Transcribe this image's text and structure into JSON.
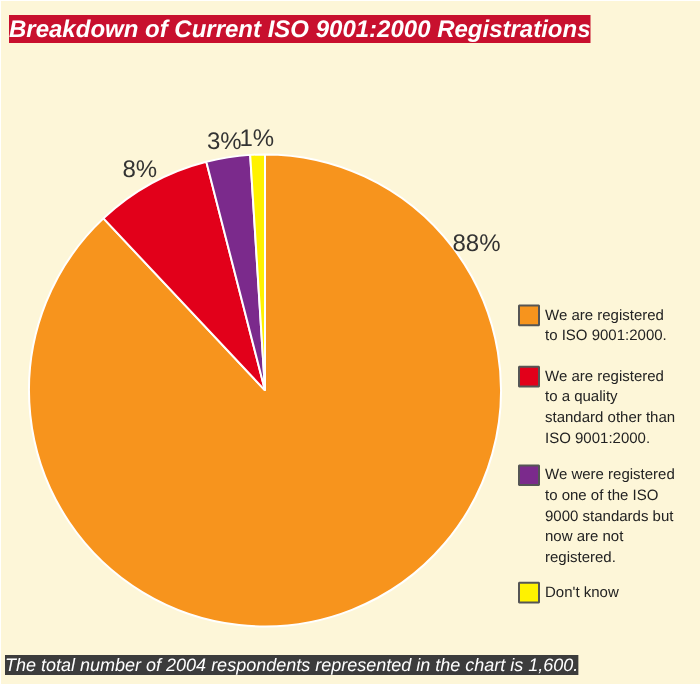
{
  "chart_data": {
    "type": "pie",
    "title": "Breakdown of Current ISO 9001:2000 Registrations",
    "categories": [
      "We are registered to ISO 9001:2000.",
      "We are registered to a quality standard other than ISO 9001:2000.",
      "We were registered to one of the ISO 9000 standards but now are not registered.",
      "Don't know"
    ],
    "values": [
      88,
      8,
      3,
      1
    ],
    "colors": [
      "#f7941d",
      "#e2001a",
      "#7b2a8c",
      "#fff200"
    ],
    "value_labels": [
      "88%",
      "8%",
      "3%",
      "1%"
    ],
    "legend": "right",
    "annotations": [
      "The total number of 2004 respondents represented in the chart is 1,600."
    ]
  }
}
